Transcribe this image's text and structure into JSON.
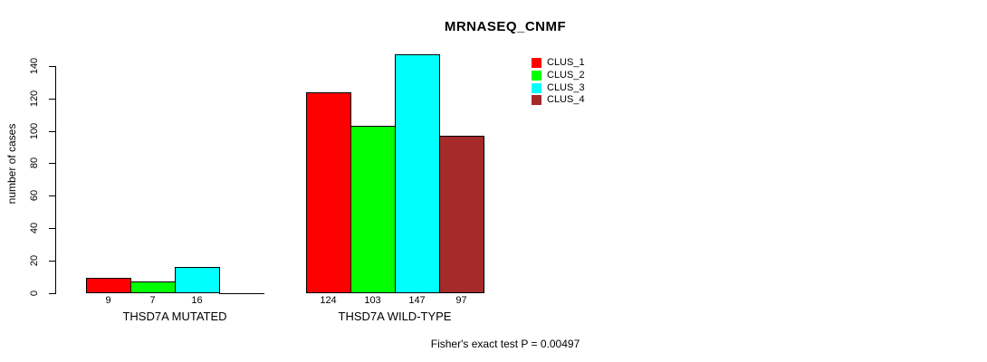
{
  "title": "MRNASEQ_CNMF",
  "footer_text": "Fisher's exact test P = 0.00497",
  "chart_data": {
    "type": "bar",
    "title": "MRNASEQ_CNMF",
    "xlabel": "",
    "ylabel": "number of cases",
    "ylim": [
      0,
      140
    ],
    "yticks": [
      0,
      20,
      40,
      60,
      80,
      100,
      120,
      140
    ],
    "grid": false,
    "legend_position": "top-right",
    "series": [
      {
        "name": "CLUS_1",
        "color": "#ff0000"
      },
      {
        "name": "CLUS_2",
        "color": "#00ff00"
      },
      {
        "name": "CLUS_3",
        "color": "#00ffff"
      },
      {
        "name": "CLUS_4",
        "color": "#a52a2a"
      }
    ],
    "groups": [
      {
        "label": "THSD7A MUTATED",
        "values": [
          9,
          7,
          16,
          0
        ],
        "value_labels": [
          "9",
          "7",
          "16",
          ""
        ]
      },
      {
        "label": "THSD7A WILD-TYPE",
        "values": [
          124,
          103,
          147,
          97
        ],
        "value_labels": [
          "124",
          "103",
          "147",
          "97"
        ]
      }
    ],
    "annotation": "Fisher's exact test P = 0.00497"
  }
}
